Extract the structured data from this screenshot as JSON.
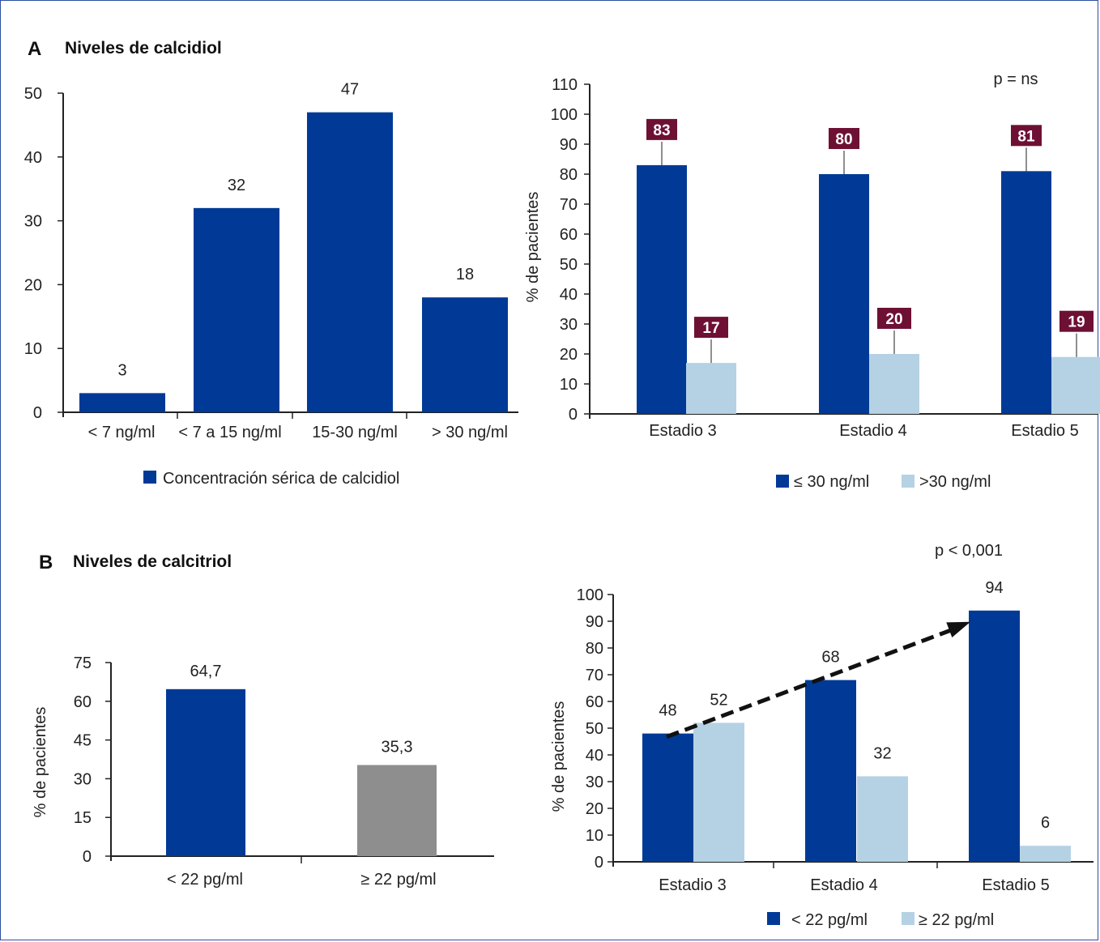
{
  "sectionA": {
    "letter": "A",
    "title": "Niveles de calcidiol"
  },
  "sectionB": {
    "letter": "B",
    "title": "Niveles de calcitriol"
  },
  "colors": {
    "dark": "#003A96",
    "light": "#B4D2E4",
    "gray": "#8E8E8E",
    "badge": "#6E1034"
  },
  "chart_data": [
    {
      "id": "A1",
      "type": "bar",
      "categories": [
        "< 7 ng/ml",
        "< 7 a 15 ng/ml",
        "15-30 ng/ml",
        "> 30 ng/ml"
      ],
      "series": [
        {
          "name": "Concentración sérica de calcidiol",
          "values": [
            3,
            32,
            47,
            18
          ]
        }
      ],
      "yticks": [
        0,
        10,
        20,
        30,
        40,
        50
      ],
      "ylim": [
        0,
        50
      ],
      "ylabel": "",
      "legend": "bottom"
    },
    {
      "id": "A2",
      "type": "bar",
      "categories": [
        "Estadio 3",
        "Estadio 4",
        "Estadio 5"
      ],
      "series": [
        {
          "name": "≤ 30 ng/ml",
          "values": [
            83,
            80,
            81
          ]
        },
        {
          "name": ">30 ng/ml",
          "values": [
            17,
            20,
            19
          ]
        }
      ],
      "yticks": [
        0,
        10,
        20,
        30,
        40,
        50,
        60,
        70,
        80,
        90,
        100,
        110
      ],
      "ylim": [
        0,
        110
      ],
      "ylabel": "% de pacientes",
      "annotation": "p = ns",
      "legend": "bottom"
    },
    {
      "id": "B1",
      "type": "bar",
      "categories": [
        "< 22 pg/ml",
        "≥ 22 pg/ml"
      ],
      "values": [
        64.7,
        35.3
      ],
      "value_labels": [
        "64,7",
        "35,3"
      ],
      "yticks": [
        0,
        15,
        30,
        45,
        60,
        75
      ],
      "ylim": [
        0,
        75
      ],
      "ylabel": "% de pacientes"
    },
    {
      "id": "B2",
      "type": "bar",
      "categories": [
        "Estadio 3",
        "Estadio 4",
        "Estadio 5"
      ],
      "series": [
        {
          "name": "< 22 pg/ml",
          "values": [
            48,
            68,
            94
          ]
        },
        {
          "name": "≥ 22 pg/ml",
          "values": [
            52,
            32,
            6
          ]
        }
      ],
      "yticks": [
        0,
        10,
        20,
        30,
        40,
        50,
        60,
        70,
        80,
        90,
        100
      ],
      "ylim": [
        0,
        100
      ],
      "ylabel": "% de pacientes",
      "annotation": "p < 0,001",
      "trend_arrow": true,
      "legend": "bottom"
    }
  ]
}
